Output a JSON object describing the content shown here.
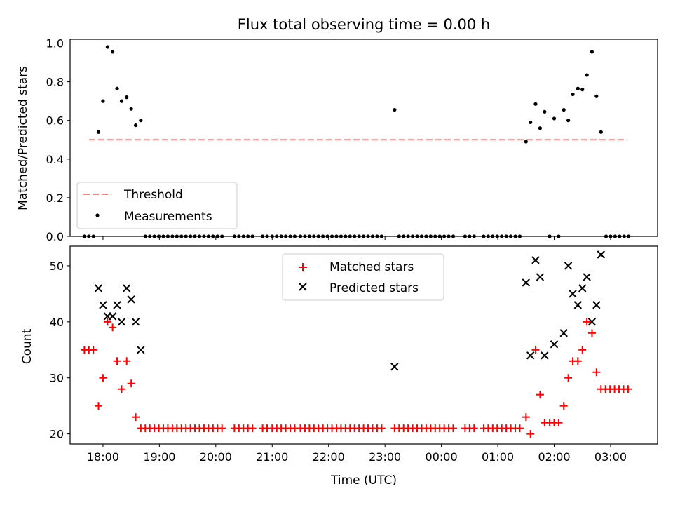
{
  "colors": {
    "threshold": "#ff8080",
    "measurement": "#000000",
    "matched": "#ff0000",
    "predicted": "#000000",
    "frame": "#000000"
  },
  "chart_data": [
    {
      "type": "scatter",
      "title": "Flux total observing time = 0.00 h",
      "xlabel": "",
      "ylabel": "Matched/Predicted stars",
      "ylim": [
        0,
        1.02
      ],
      "xlim": [
        "17:25",
        "03:50"
      ],
      "x_unit": "time of day (UTC), hours past midnight when > 24",
      "x_ticks": [
        {
          "x": 18,
          "label": ""
        },
        {
          "x": 19,
          "label": ""
        },
        {
          "x": 20,
          "label": ""
        },
        {
          "x": 21,
          "label": ""
        },
        {
          "x": 22,
          "label": ""
        },
        {
          "x": 23,
          "label": ""
        },
        {
          "x": 24,
          "label": ""
        },
        {
          "x": 25,
          "label": ""
        },
        {
          "x": 26,
          "label": ""
        },
        {
          "x": 27,
          "label": ""
        }
      ],
      "y_ticks": [
        {
          "y": 0.0,
          "label": "0.0"
        },
        {
          "y": 0.2,
          "label": "0.2"
        },
        {
          "y": 0.4,
          "label": "0.4"
        },
        {
          "y": 0.6,
          "label": "0.6"
        },
        {
          "y": 0.8,
          "label": "0.8"
        },
        {
          "y": 1.0,
          "label": "1.0"
        }
      ],
      "legend": {
        "placement": "lower-left",
        "entries": [
          "Threshold",
          "Measurements"
        ]
      },
      "series": [
        {
          "name": "Threshold",
          "style": "dashed-line",
          "x": [
            17.75,
            27.3
          ],
          "y": [
            0.5,
            0.5
          ]
        },
        {
          "name": "Measurements",
          "style": "dot",
          "x": [
            17.92,
            18.0,
            18.08,
            18.17,
            18.25,
            18.33,
            18.42,
            18.5,
            18.58,
            18.67,
            23.17,
            25.5,
            25.58,
            25.67,
            25.75,
            25.83,
            26.0,
            26.17,
            26.25,
            26.33,
            26.42,
            26.5,
            26.58,
            26.67,
            26.75,
            26.83
          ],
          "y": [
            0.54,
            0.7,
            0.98,
            0.955,
            0.765,
            0.7,
            0.72,
            0.66,
            0.575,
            0.6,
            0.655,
            0.49,
            0.59,
            0.685,
            0.56,
            0.645,
            0.61,
            0.655,
            0.6,
            0.735,
            0.765,
            0.76,
            0.835,
            0.955,
            0.725,
            0.54
          ]
        },
        {
          "name": "Measurements (zero)",
          "style": "dot",
          "y_all": 0,
          "x_groups": [
            [
              17.67,
              17.83,
              0.08
            ],
            [
              18.75,
              20.17,
              0.08
            ],
            [
              20.33,
              20.67,
              0.08
            ],
            [
              20.83,
              20.92,
              0.08
            ],
            [
              21.0,
              21.42,
              0.08
            ],
            [
              21.5,
              23.0,
              0.08
            ],
            [
              23.25,
              24.25,
              0.08
            ],
            [
              24.42,
              24.58,
              0.08
            ],
            [
              24.75,
              25.42,
              0.08
            ],
            [
              25.92,
              25.92,
              0.08
            ],
            [
              26.08,
              26.08,
              0.08
            ],
            [
              26.92,
              27.33,
              0.08
            ]
          ]
        }
      ]
    },
    {
      "type": "scatter",
      "title": "",
      "xlabel": "Time (UTC)",
      "ylabel": "Count",
      "ylim": [
        18.2,
        53.5
      ],
      "xlim": [
        "17:25",
        "03:50"
      ],
      "x_ticks": [
        {
          "x": 18,
          "label": "18:00"
        },
        {
          "x": 19,
          "label": "19:00"
        },
        {
          "x": 20,
          "label": "20:00"
        },
        {
          "x": 21,
          "label": "21:00"
        },
        {
          "x": 22,
          "label": "22:00"
        },
        {
          "x": 23,
          "label": "23:00"
        },
        {
          "x": 24,
          "label": "00:00"
        },
        {
          "x": 25,
          "label": "01:00"
        },
        {
          "x": 26,
          "label": "02:00"
        },
        {
          "x": 27,
          "label": "03:00"
        }
      ],
      "y_ticks": [
        {
          "y": 20,
          "label": "20"
        },
        {
          "y": 30,
          "label": "30"
        },
        {
          "y": 40,
          "label": "40"
        },
        {
          "y": 50,
          "label": "50"
        }
      ],
      "legend": {
        "placement": "upper-center",
        "entries": [
          "Matched stars",
          "Predicted stars"
        ]
      },
      "series": [
        {
          "name": "Matched stars",
          "style": "plus",
          "x": [
            17.67,
            17.75,
            17.83,
            17.92,
            18.0,
            18.08,
            18.17,
            18.25,
            18.33,
            18.42,
            18.5,
            18.58,
            25.5,
            25.58,
            25.67,
            25.75,
            25.83,
            25.92,
            26.0,
            26.08,
            26.17,
            26.25,
            26.33,
            26.42,
            26.5,
            26.58,
            26.67,
            26.75
          ],
          "y": [
            35,
            35,
            35,
            25,
            30,
            40,
            39,
            33,
            28,
            33,
            29,
            23,
            23,
            20,
            35,
            27,
            22,
            22,
            22,
            22,
            25,
            30,
            33,
            33,
            35,
            40,
            38,
            31
          ]
        },
        {
          "name": "Matched stars (baseline)",
          "style": "plus",
          "y_all": 21,
          "x_groups": [
            [
              18.67,
              20.17,
              0.08
            ],
            [
              20.33,
              20.67,
              0.08
            ],
            [
              20.83,
              20.92,
              0.08
            ],
            [
              21.0,
              21.42,
              0.08
            ],
            [
              21.5,
              23.0,
              0.08
            ],
            [
              23.17,
              24.25,
              0.08
            ],
            [
              24.42,
              24.58,
              0.08
            ],
            [
              24.75,
              25.42,
              0.08
            ]
          ]
        },
        {
          "name": "Matched stars (late)",
          "style": "plus",
          "y_all": 28,
          "x_groups": [
            [
              26.83,
              27.33,
              0.08
            ]
          ]
        },
        {
          "name": "Predicted stars",
          "style": "cross",
          "x": [
            17.92,
            18.0,
            18.08,
            18.17,
            18.25,
            18.33,
            18.42,
            18.5,
            18.58,
            18.67,
            23.17,
            25.5,
            25.58,
            25.67,
            25.75,
            25.83,
            26.0,
            26.17,
            26.25,
            26.33,
            26.42,
            26.5,
            26.58,
            26.67,
            26.75,
            26.83
          ],
          "y": [
            46,
            43,
            41,
            41,
            43,
            40,
            46,
            44,
            40,
            35,
            32,
            47,
            34,
            51,
            48,
            34,
            36,
            38,
            50,
            45,
            43,
            46,
            48,
            40,
            43,
            52
          ]
        }
      ]
    }
  ]
}
